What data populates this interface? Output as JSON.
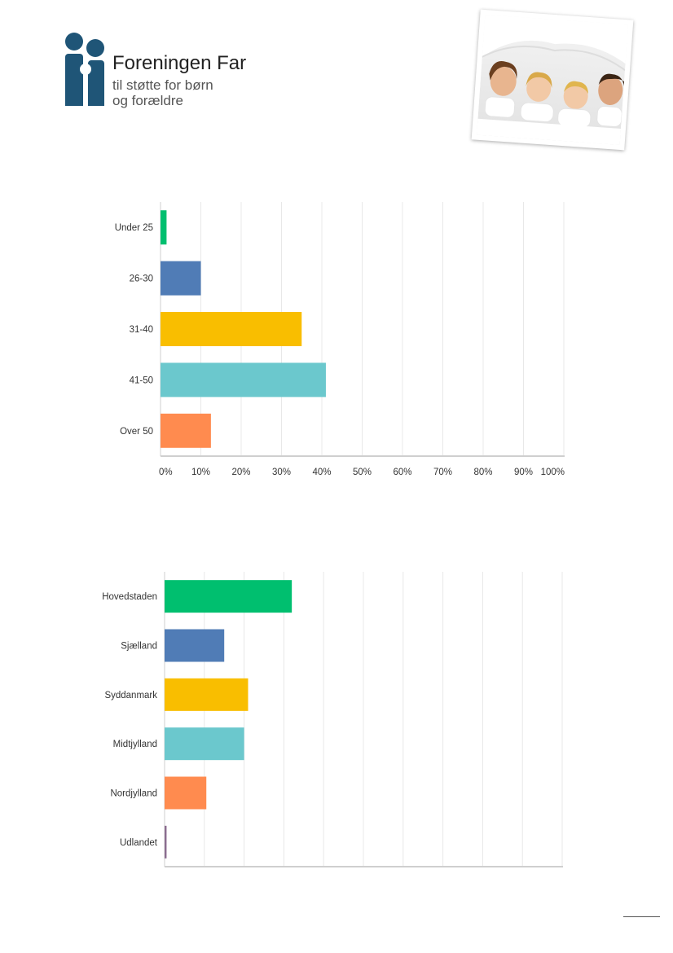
{
  "logo": {
    "name": "Foreningen Far",
    "tagline_line1": "til støtte for børn",
    "tagline_line2": "og forældre",
    "color": "#1f5577"
  },
  "photo": {
    "subject": "family-under-blanket-photo"
  },
  "chart_data": [
    {
      "type": "bar",
      "orientation": "horizontal",
      "categories": [
        "Under 25",
        "26-30",
        "31-40",
        "41-50",
        "Over 50"
      ],
      "values": [
        1.5,
        10,
        35,
        41,
        12.5
      ],
      "colors": [
        "#00bf6f",
        "#507cb6",
        "#f9be00",
        "#6bc8cd",
        "#ff8b4f"
      ],
      "xlim": [
        0,
        100
      ],
      "xticks": [
        "0%",
        "10%",
        "20%",
        "30%",
        "40%",
        "50%",
        "60%",
        "70%",
        "80%",
        "90%",
        "100%"
      ],
      "grid": true,
      "title": "",
      "xlabel": "",
      "ylabel": ""
    },
    {
      "type": "bar",
      "orientation": "horizontal",
      "categories": [
        "Hovedstaden",
        "Sjælland",
        "Syddanmark",
        "Midtjylland",
        "Nordjylland",
        "Udlandet"
      ],
      "values": [
        32,
        15,
        21,
        20,
        10.5,
        0.5
      ],
      "colors": [
        "#00bf6f",
        "#507cb6",
        "#f9be00",
        "#6bc8cd",
        "#ff8b4f",
        "#8b6d8f"
      ],
      "xlim": [
        0,
        100
      ],
      "xticks": [],
      "grid": true,
      "title": "",
      "xlabel": "",
      "ylabel": ""
    }
  ]
}
